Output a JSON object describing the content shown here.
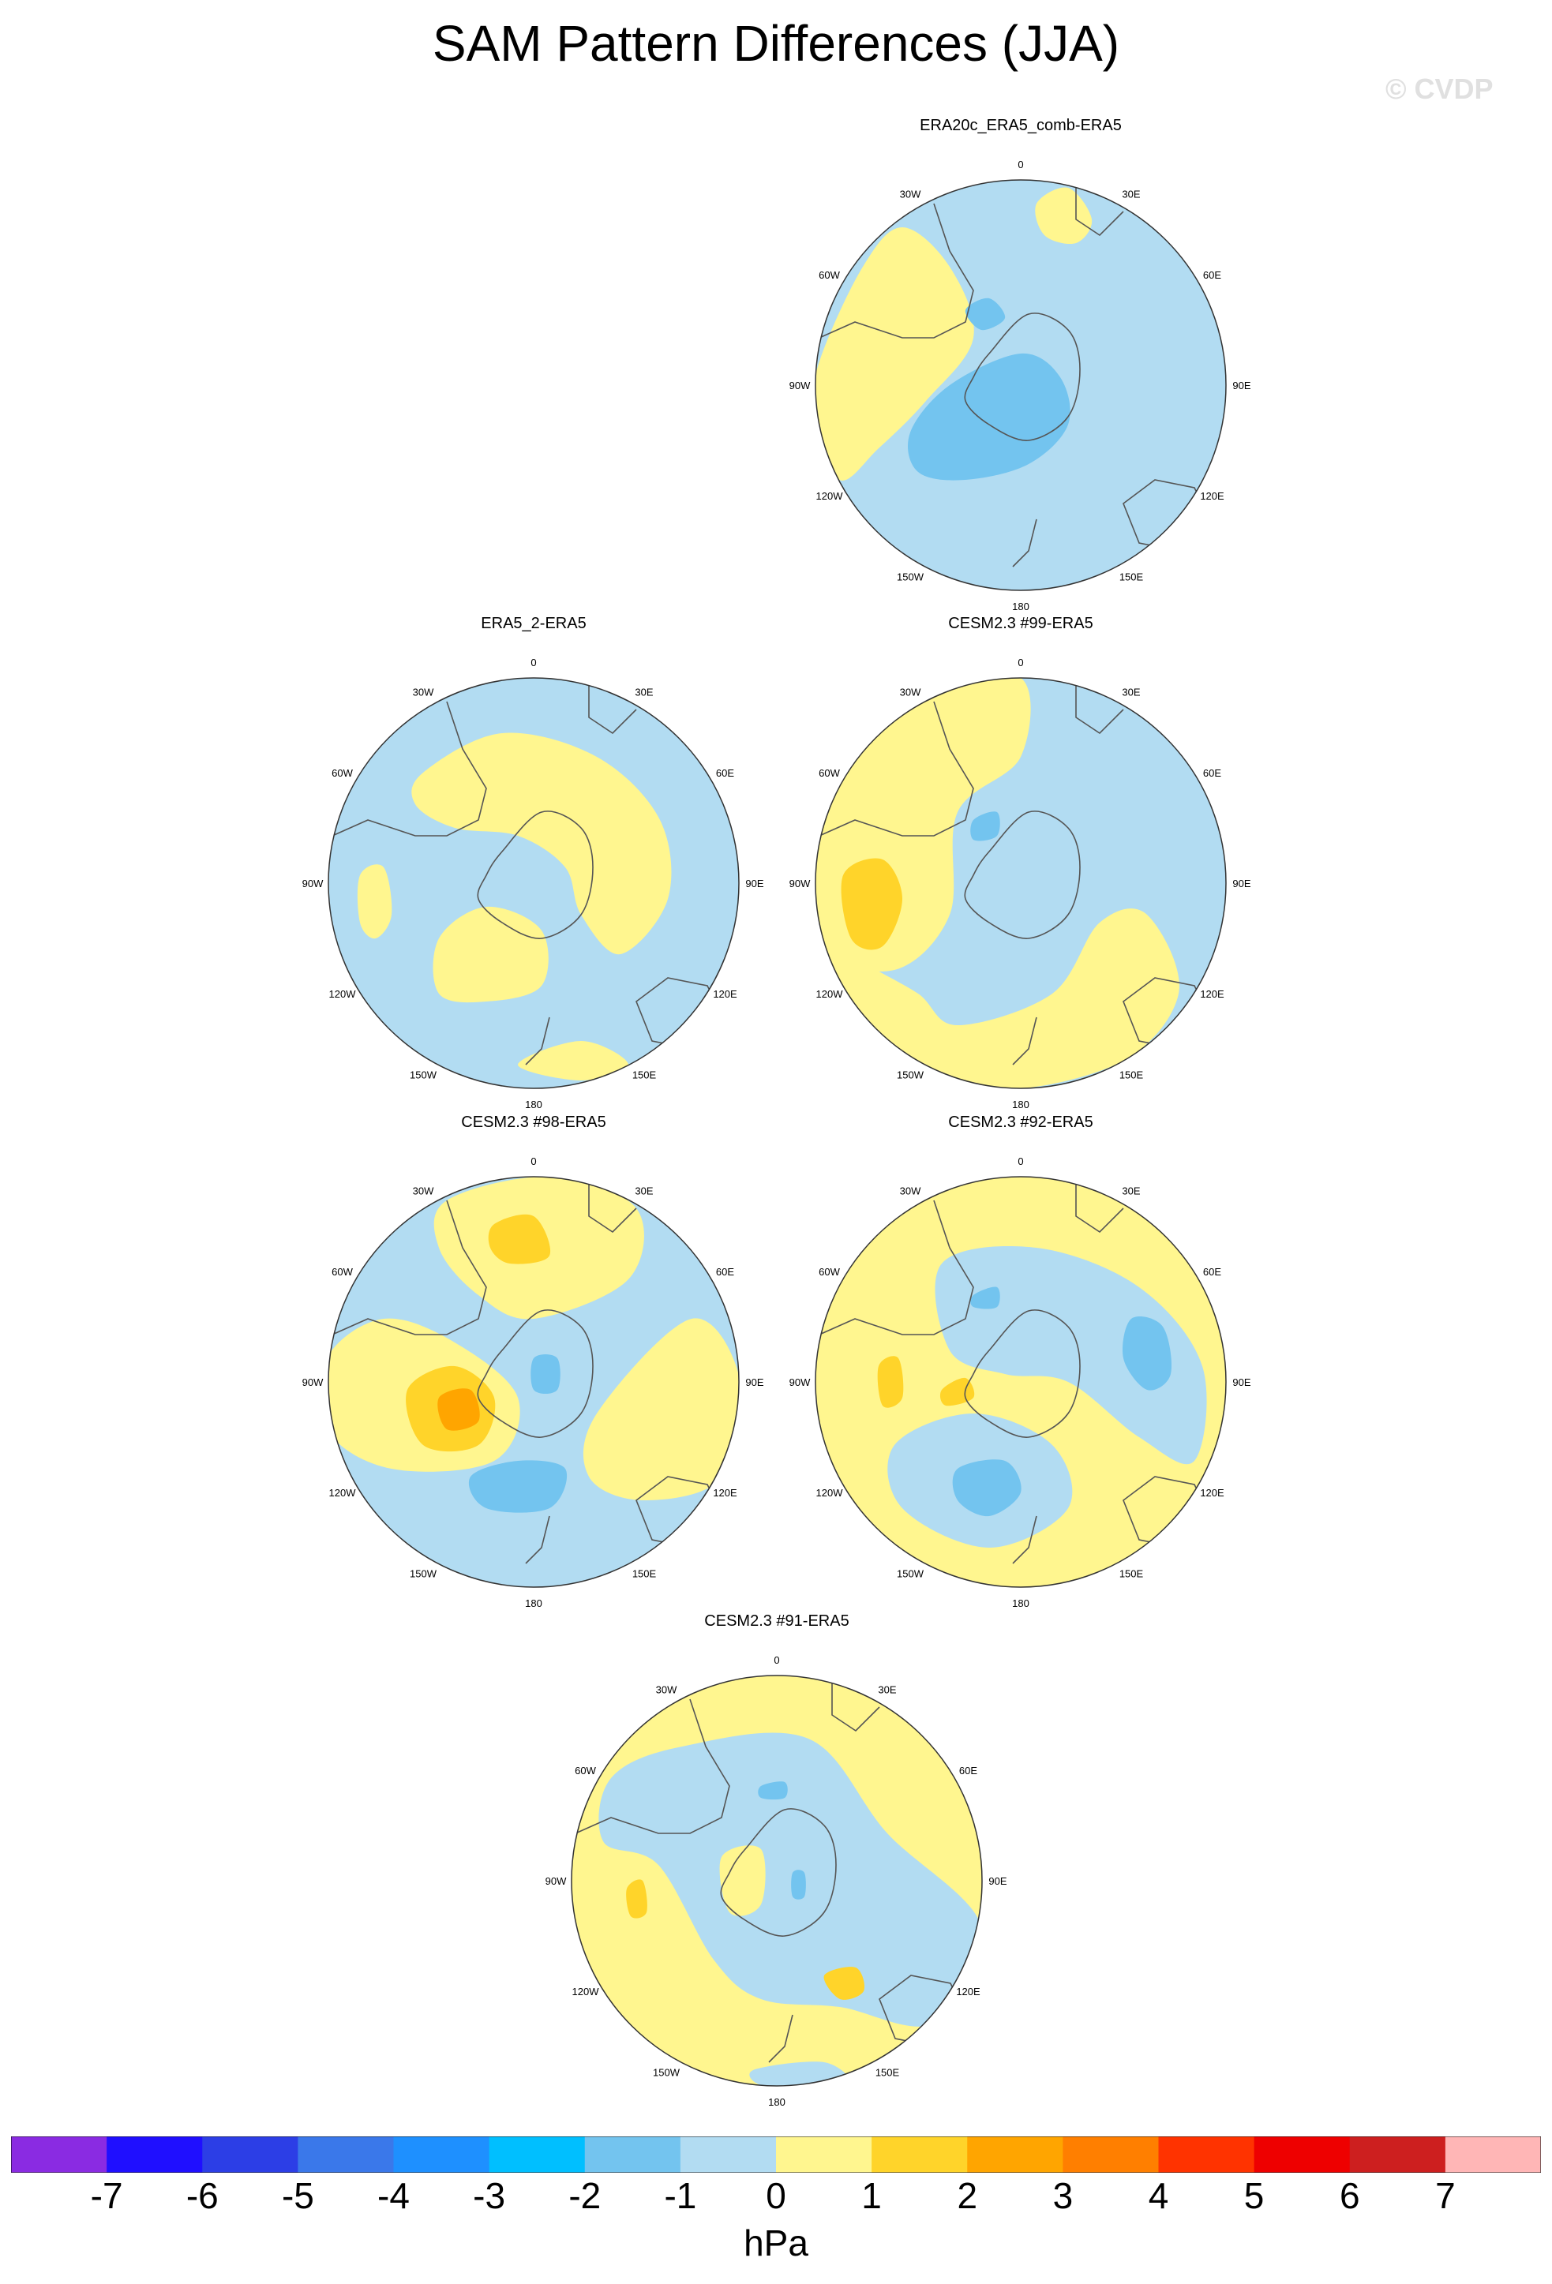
{
  "title": "SAM Pattern Differences (JJA)",
  "credit": "© CVDP",
  "colors": {
    "pos1": "#fff68f",
    "pos2": "#ffd42a",
    "pos3": "#ffa500",
    "neg1": "#b2dcf2",
    "neg2": "#73c4ef",
    "coast": "#555555",
    "border": "#333333"
  },
  "longitude_labels": [
    "0",
    "30E",
    "60E",
    "90E",
    "120E",
    "150E",
    "180",
    "150W",
    "120W",
    "90W",
    "60W",
    "30W"
  ],
  "panels": [
    {
      "title": "ERA20c_ERA5_comb-ERA5",
      "background": "neg1"
    },
    {
      "title": "ERA5_2-ERA5",
      "background": "neg1"
    },
    {
      "title": "CESM2.3 #99-ERA5",
      "background": "neg1"
    },
    {
      "title": "CESM2.3 #98-ERA5",
      "background": "neg1"
    },
    {
      "title": "CESM2.3 #92-ERA5",
      "background": "pos1"
    },
    {
      "title": "CESM2.3 #91-ERA5",
      "background": "pos1"
    }
  ],
  "colorbar": {
    "colors": [
      "#8a2be2",
      "#1f0fff",
      "#2c3ee6",
      "#3a78ea",
      "#1e90ff",
      "#00bfff",
      "#73c4ef",
      "#b2dcf2",
      "#fff68f",
      "#ffd42a",
      "#ffa500",
      "#ff7f00",
      "#ff3300",
      "#ee0000",
      "#cd1f1f",
      "#ffb6b6"
    ],
    "ticks": [
      "-7",
      "-6",
      "-5",
      "-4",
      "-3",
      "-2",
      "-1",
      "0",
      "1",
      "2",
      "3",
      "4",
      "5",
      "6",
      "7"
    ],
    "unit": "hPa"
  }
}
